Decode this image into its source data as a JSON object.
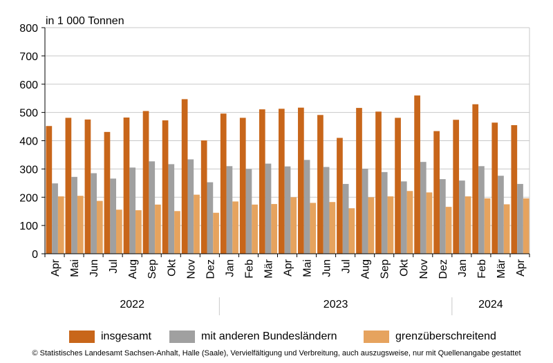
{
  "chart_data": {
    "type": "bar",
    "unit_label": "in 1 000 Tonnen",
    "categories": [
      "Apr",
      "Mai",
      "Jun",
      "Jul",
      "Aug",
      "Sep",
      "Okt",
      "Nov",
      "Dez",
      "Jan",
      "Feb",
      "Mär",
      "Apr",
      "Mai",
      "Jun",
      "Jul",
      "Aug",
      "Sep",
      "Okt",
      "Nov",
      "Dez",
      "Jan",
      "Feb",
      "Mär",
      "Apr"
    ],
    "years": [
      {
        "label": "2022",
        "from": 0,
        "to": 8
      },
      {
        "label": "2023",
        "from": 9,
        "to": 20
      },
      {
        "label": "2024",
        "from": 21,
        "to": 24
      }
    ],
    "series": [
      {
        "name": "insgesamt",
        "color": "#c8661a",
        "values": [
          452,
          481,
          475,
          431,
          482,
          505,
          472,
          547,
          401,
          496,
          481,
          511,
          513,
          517,
          491,
          410,
          516,
          503,
          481,
          560,
          434,
          474,
          529,
          464,
          455
        ]
      },
      {
        "name": "mit anderen Bundesländern",
        "color": "#a0a0a0",
        "values": [
          249,
          272,
          285,
          266,
          305,
          327,
          317,
          334,
          253,
          310,
          300,
          319,
          309,
          332,
          307,
          247,
          301,
          289,
          256,
          325,
          264,
          259,
          310,
          276,
          247
        ]
      },
      {
        "name": "grenzüberschreitend",
        "color": "#e6a35e",
        "values": [
          203,
          205,
          187,
          156,
          154,
          174,
          151,
          209,
          145,
          185,
          174,
          176,
          200,
          180,
          183,
          161,
          200,
          203,
          222,
          217,
          166,
          203,
          196,
          175,
          196
        ]
      }
    ],
    "ylim": [
      0,
      800
    ],
    "yticks": [
      0,
      100,
      200,
      300,
      400,
      500,
      600,
      700,
      800
    ],
    "grid": true,
    "legend_position": "bottom"
  },
  "footer": {
    "copyright": "© Statistisches Landesamt Sachsen-Anhalt, Halle (Saale), Vervielfältigung und Verbreitung, auch auszugsweise, nur mit Quellenangabe gestattet"
  }
}
